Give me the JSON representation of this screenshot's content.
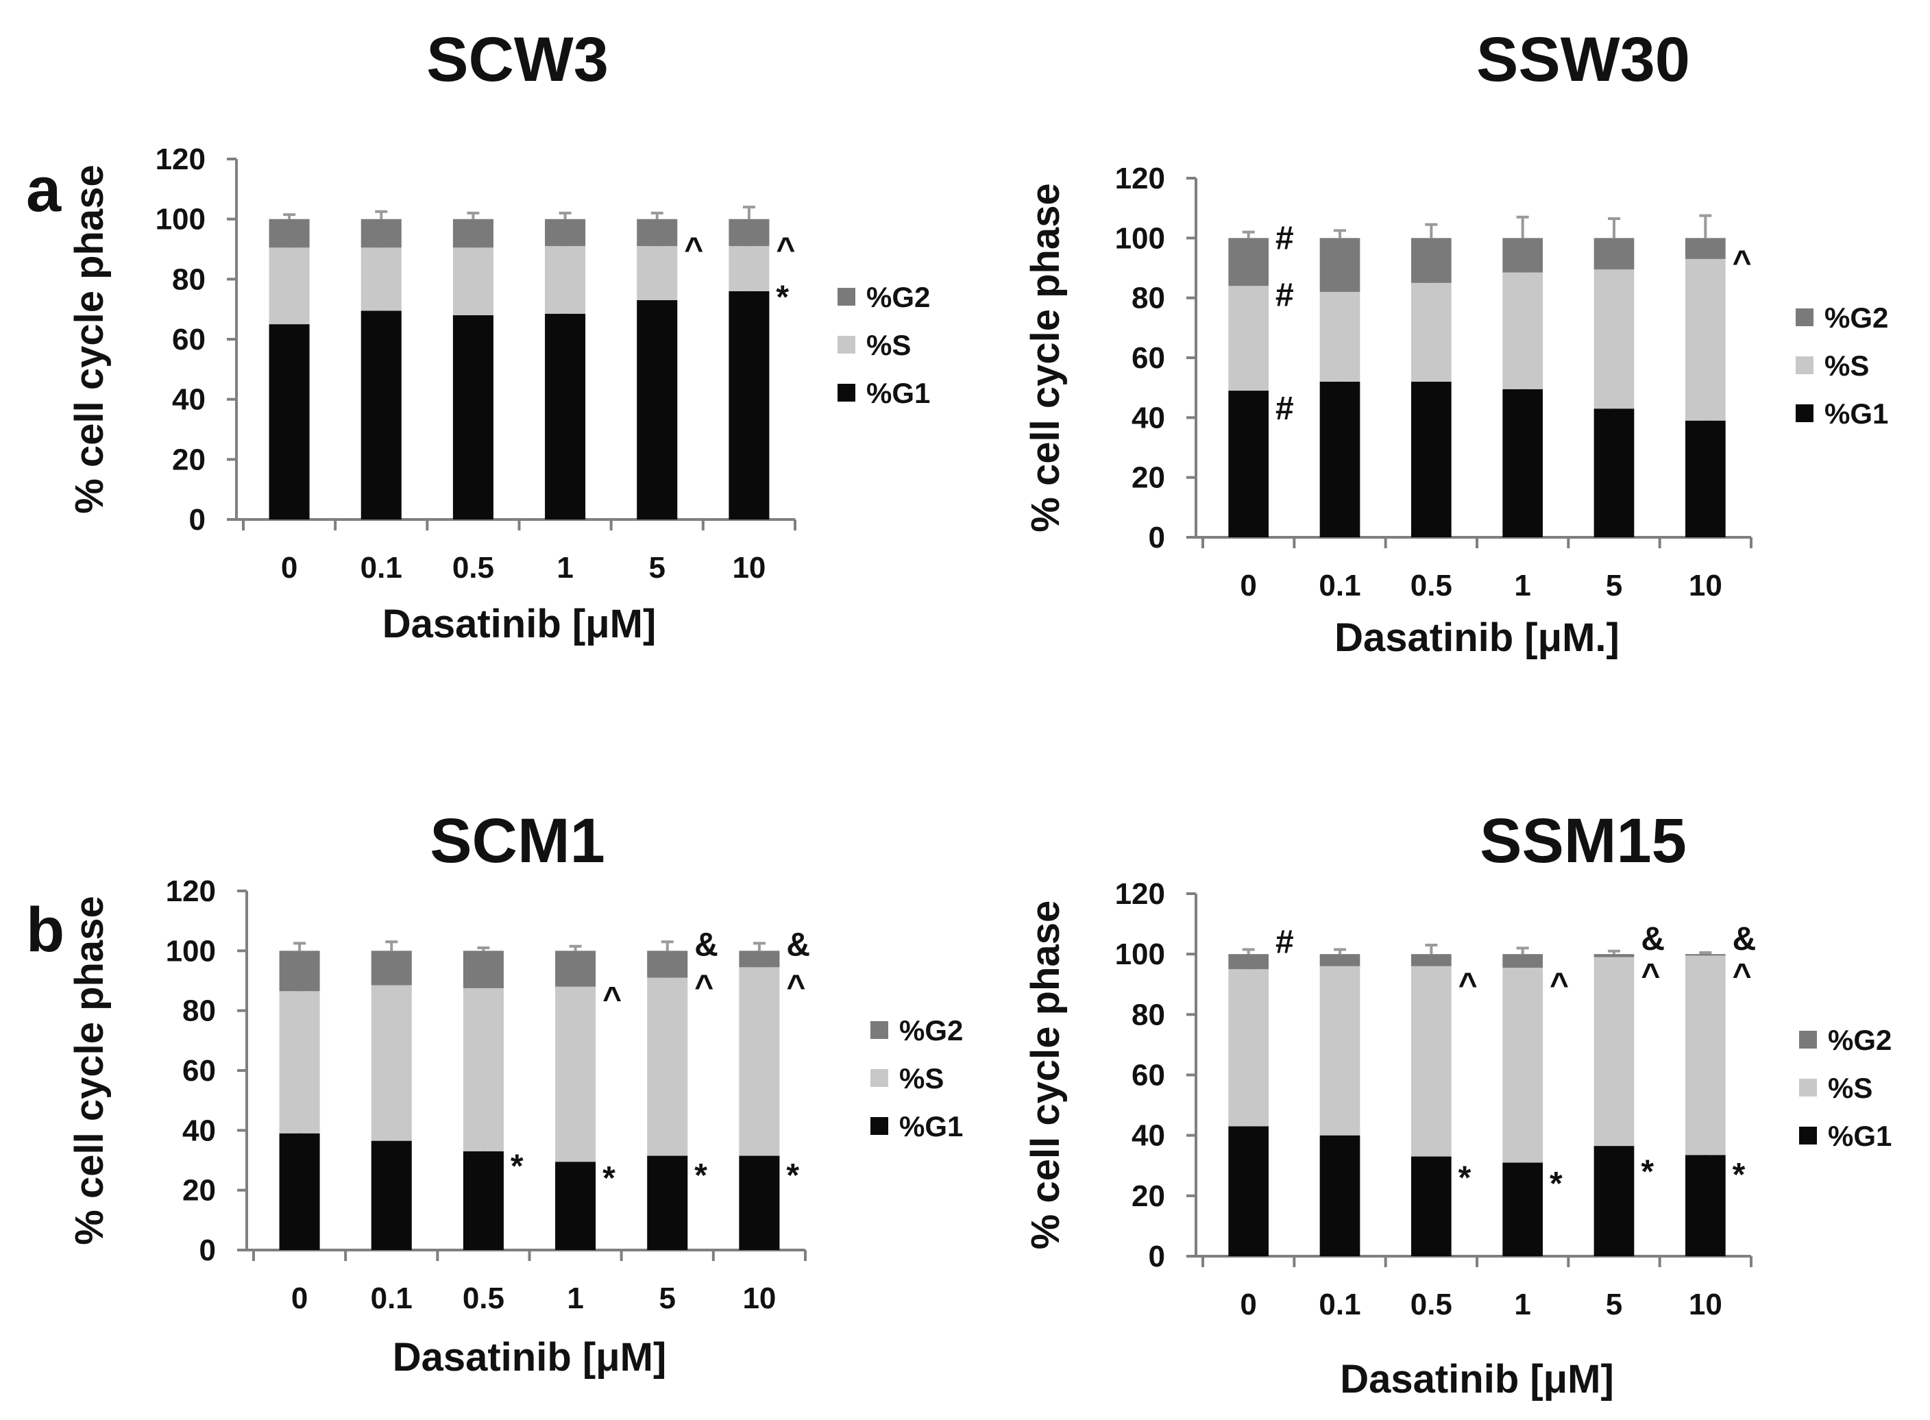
{
  "panel_labels": [
    "a",
    "b"
  ],
  "chart_data": [
    {
      "type": "bar",
      "stacked": true,
      "title": "SCW3",
      "xlabel": "Dasatinib [μM]",
      "ylabel": "% cell cycle phase",
      "ylim": [
        0,
        120
      ],
      "yticks": [
        0,
        20,
        40,
        60,
        80,
        100,
        120
      ],
      "categories": [
        "0",
        "0.1",
        "0.5",
        "1",
        "5",
        "10"
      ],
      "series": [
        {
          "name": "%G1",
          "color": "#0a0a0a",
          "values": [
            65,
            69.5,
            68,
            68.5,
            73,
            76
          ],
          "errors": [
            1.5,
            1.5,
            1.5,
            2,
            3,
            6
          ]
        },
        {
          "name": "%S",
          "color": "#c8c8c8",
          "values": [
            25.5,
            21,
            22.5,
            22.5,
            18,
            15
          ],
          "errors": [
            1,
            1,
            1,
            1,
            1,
            2
          ]
        },
        {
          "name": "%G2",
          "color": "#7a7a7a",
          "values": [
            9.5,
            9.5,
            9.5,
            9,
            9,
            9
          ],
          "errors": [
            1.5,
            2.5,
            2,
            2,
            2,
            4
          ]
        }
      ],
      "legend": [
        "%G2",
        "%S",
        "%G1"
      ],
      "annotations": [
        {
          "category": "5",
          "level": 90,
          "text": "^"
        },
        {
          "category": "10",
          "level": 90,
          "text": "^"
        },
        {
          "category": "10",
          "level": 74,
          "text": "*"
        }
      ]
    },
    {
      "type": "bar",
      "stacked": true,
      "title": "SSW30",
      "xlabel": "Dasatinib [μM.]",
      "ylabel": "% cell cycle phase",
      "ylim": [
        0,
        120
      ],
      "yticks": [
        0,
        20,
        40,
        60,
        80,
        100,
        120
      ],
      "categories": [
        "0",
        "0.1",
        "0.5",
        "1",
        "5",
        "10"
      ],
      "series": [
        {
          "name": "%G1",
          "color": "#0a0a0a",
          "values": [
            49,
            52,
            52,
            49.5,
            43,
            39
          ],
          "errors": [
            3,
            4,
            8,
            6,
            9,
            7
          ]
        },
        {
          "name": "%S",
          "color": "#c8c8c8",
          "values": [
            35,
            30,
            33,
            39,
            46.5,
            54
          ],
          "errors": [
            5,
            2,
            4,
            1,
            2,
            4
          ]
        },
        {
          "name": "%G2",
          "color": "#7a7a7a",
          "values": [
            16,
            18,
            15,
            11.5,
            10.5,
            7
          ],
          "errors": [
            2,
            2.5,
            4.5,
            7,
            6.5,
            7.5
          ]
        }
      ],
      "legend": [
        "%G2",
        "%S",
        "%G1"
      ],
      "annotations": [
        {
          "category": "0",
          "level": 100,
          "text": "#"
        },
        {
          "category": "0",
          "level": 81,
          "text": "#"
        },
        {
          "category": "0",
          "level": 43,
          "text": "#"
        },
        {
          "category": "10",
          "level": 92,
          "text": "^"
        }
      ]
    },
    {
      "type": "bar",
      "stacked": true,
      "title": "SCM1",
      "xlabel": "Dasatinib [μM]",
      "ylabel": "% cell cycle phase",
      "ylim": [
        0,
        120
      ],
      "yticks": [
        0,
        20,
        40,
        60,
        80,
        100,
        120
      ],
      "categories": [
        "0",
        "0.1",
        "0.5",
        "1",
        "5",
        "10"
      ],
      "series": [
        {
          "name": "%G1",
          "color": "#0a0a0a",
          "values": [
            39,
            36.5,
            33,
            29.5,
            31.5,
            31.5
          ],
          "errors": [
            1.5,
            1.5,
            1,
            1.5,
            1.5,
            1
          ]
        },
        {
          "name": "%S",
          "color": "#c8c8c8",
          "values": [
            47.5,
            52,
            54.5,
            58.5,
            59.5,
            63
          ],
          "errors": [
            1,
            1.5,
            1.5,
            1,
            1.5,
            1
          ]
        },
        {
          "name": "%G2",
          "color": "#7a7a7a",
          "values": [
            13.5,
            11.5,
            12.5,
            12,
            9,
            5.5
          ],
          "errors": [
            2.5,
            3,
            1,
            1.5,
            3,
            2.5
          ]
        }
      ],
      "legend": [
        "%G2",
        "%S",
        "%G1"
      ],
      "annotations": [
        {
          "category": "5",
          "level": 102,
          "text": "&"
        },
        {
          "category": "10",
          "level": 102,
          "text": "&"
        },
        {
          "category": "1",
          "level": 84,
          "text": "^"
        },
        {
          "category": "5",
          "level": 88,
          "text": "^"
        },
        {
          "category": "10",
          "level": 88,
          "text": "^"
        },
        {
          "category": "0.5",
          "level": 28,
          "text": "*"
        },
        {
          "category": "1",
          "level": 24,
          "text": "*"
        },
        {
          "category": "5",
          "level": 25,
          "text": "*"
        },
        {
          "category": "10",
          "level": 25,
          "text": "*"
        }
      ]
    },
    {
      "type": "bar",
      "stacked": true,
      "title": "SSM15",
      "xlabel": "Dasatinib [μM]",
      "ylabel": "% cell cycle phase",
      "ylim": [
        0,
        120
      ],
      "yticks": [
        0,
        20,
        40,
        60,
        80,
        100,
        120
      ],
      "categories": [
        "0",
        "0.1",
        "0.5",
        "1",
        "5",
        "10"
      ],
      "series": [
        {
          "name": "%G1",
          "color": "#0a0a0a",
          "values": [
            43,
            40,
            33,
            31,
            36.5,
            33.5
          ],
          "errors": [
            3,
            2.5,
            2.5,
            1,
            3,
            1.5
          ]
        },
        {
          "name": "%S",
          "color": "#c8c8c8",
          "values": [
            52,
            56,
            63,
            64.5,
            62.5,
            66
          ],
          "errors": [
            1.5,
            1,
            1,
            1,
            0.5,
            0.5
          ]
        },
        {
          "name": "%G2",
          "color": "#7a7a7a",
          "values": [
            5,
            4,
            4,
            4.5,
            1,
            0.5
          ],
          "errors": [
            1.5,
            1.5,
            3,
            2,
            1,
            0.5
          ]
        }
      ],
      "legend": [
        "%G2",
        "%S",
        "%G1"
      ],
      "annotations": [
        {
          "category": "0",
          "level": 104,
          "text": "#"
        },
        {
          "category": "5",
          "level": 105,
          "text": "&"
        },
        {
          "category": "10",
          "level": 105,
          "text": "&"
        },
        {
          "category": "0.5",
          "level": 90,
          "text": "^"
        },
        {
          "category": "1",
          "level": 90,
          "text": "^"
        },
        {
          "category": "5",
          "level": 93,
          "text": "^"
        },
        {
          "category": "10",
          "level": 93,
          "text": "^"
        },
        {
          "category": "0.5",
          "level": 26,
          "text": "*"
        },
        {
          "category": "1",
          "level": 24,
          "text": "*"
        },
        {
          "category": "5",
          "level": 28,
          "text": "*"
        },
        {
          "category": "10",
          "level": 27,
          "text": "*"
        }
      ]
    }
  ]
}
